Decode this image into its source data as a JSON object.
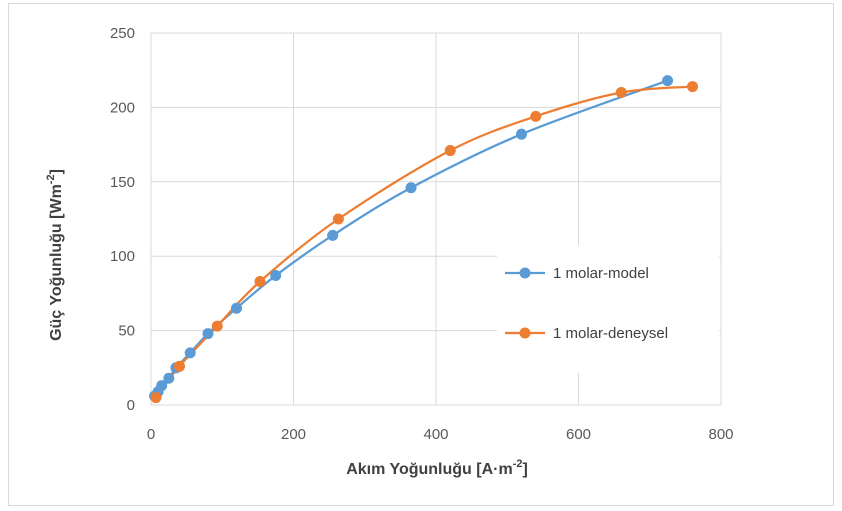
{
  "chart_data": {
    "type": "scatter",
    "title": "",
    "xlabel": "Akım Yoğunluğu  [A·m",
    "xlabel_sup": "-2",
    "xlabel_end": "]",
    "ylabel": "Güç Yoğunluğu  [Wm",
    "ylabel_sup": "-2",
    "ylabel_end": "]",
    "xlim": [
      0,
      800
    ],
    "ylim": [
      0,
      250
    ],
    "xticks": [
      0,
      200,
      400,
      600,
      800
    ],
    "yticks": [
      0,
      50,
      100,
      150,
      200,
      250
    ],
    "xtick_labels": [
      "0",
      "200",
      "400",
      "600",
      "800"
    ],
    "ytick_labels": [
      "0",
      "50",
      "100",
      "150",
      "200",
      "250"
    ],
    "grid": true,
    "legend_position": "right",
    "series": [
      {
        "name": "1 molar-model",
        "color": "#5b9bd5",
        "x": [
          5,
          10,
          15,
          25,
          35,
          55,
          80,
          120,
          175,
          255,
          365,
          520,
          725
        ],
        "y": [
          6,
          9,
          13,
          18,
          25,
          35,
          48,
          65,
          87,
          114,
          146,
          182,
          218
        ]
      },
      {
        "name": "1 molar-deneysel",
        "color": "#ed7d31",
        "x": [
          7,
          40,
          93,
          153,
          263,
          420,
          540,
          660,
          760
        ],
        "y": [
          5,
          26,
          53,
          83,
          125,
          171,
          194,
          210,
          214
        ]
      }
    ]
  }
}
